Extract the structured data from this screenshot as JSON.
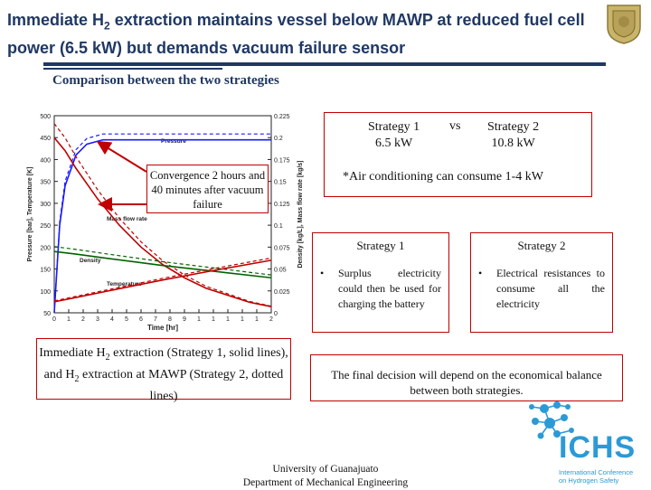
{
  "title": {
    "before_sub": "Immediate H",
    "sub": "2",
    "after_sub": " extraction maintains vessel below MAWP at reduced fuel cell power (6.5 kW) but demands vacuum failure sensor"
  },
  "subtitle": "Comparison between the two strategies",
  "comparison": {
    "strategy1_name": "Strategy 1",
    "strategy1_power": "6.5 kW",
    "vs": "vs",
    "strategy2_name": "Strategy 2",
    "strategy2_power": "10.8 kW",
    "note": "*Air conditioning can consume 1-4 kW"
  },
  "convergence_note": "Convergence 2 hours and 40 minutes after vacuum failure",
  "caption": {
    "part1": "Immediate H",
    "sub1": "2",
    "part2": " extraction (Strategy 1, solid lines), and H",
    "sub2": "2",
    "part3": " extraction at MAWP (Strategy 2, dotted lines)"
  },
  "strategy1": {
    "title": "Strategy 1",
    "bullet": "Surplus electricity could then be used for charging the battery"
  },
  "strategy2": {
    "title": "Strategy 2",
    "bullet": "Electrical resistances to consume all the electricity"
  },
  "final_decision": "The final decision will depend on the economical balance between both strategies.",
  "footer": {
    "line1": "University of Guanajuato",
    "line2": "Department of Mechanical Engineering"
  },
  "logo": {
    "name": "ICHS",
    "line1": "International Conference",
    "line2": "on Hydrogen Safety"
  },
  "chart_data": {
    "type": "line",
    "xlabel": "Time [hr]",
    "ylabel_left": "Pressure [bar], Temperature [K]",
    "ylabel_right": "Density [kg/L], Mass flow rate [kg/s]",
    "xlim": [
      0,
      2
    ],
    "ylim_left": [
      50,
      500
    ],
    "ylim_right": [
      0,
      0.225
    ],
    "x_ticks": [
      "0",
      "1",
      "2",
      "3",
      "4",
      "5",
      "6",
      "7",
      "8",
      "9",
      "1",
      "1",
      "1",
      "1",
      "1",
      "2"
    ],
    "y_ticks_left": [
      "500",
      "450",
      "400",
      "350",
      "300",
      "250",
      "200",
      "150",
      "100",
      "50"
    ],
    "y_ticks_right": [
      "0.225",
      "0.2",
      "0.175",
      "0.15",
      "0.125",
      "0.1",
      "0.075",
      "0.05",
      "0.025",
      "0"
    ],
    "annotations": [
      "Pressure",
      "Mass flow rate",
      "Density",
      "Temperature"
    ],
    "series": [
      {
        "name": "Pressure",
        "color": "#1a1aff",
        "x": [
          0,
          0.05,
          0.1,
          0.2,
          0.3,
          0.45,
          0.6,
          1.0,
          1.5,
          2.0
        ],
        "y": [
          50,
          250,
          340,
          410,
          435,
          445,
          445,
          445,
          445,
          445
        ]
      },
      {
        "name": "Mass flow rate",
        "color": "#c00000",
        "x": [
          0,
          0.1,
          0.2,
          0.4,
          0.6,
          0.8,
          1.0,
          1.2,
          1.4,
          1.6,
          1.8,
          2.0
        ],
        "y": [
          0.2,
          0.185,
          0.165,
          0.13,
          0.1,
          0.075,
          0.055,
          0.04,
          0.028,
          0.02,
          0.012,
          0.007
        ]
      },
      {
        "name": "Density",
        "color": "#006400",
        "x": [
          0,
          0.2,
          0.5,
          1.0,
          1.5,
          2.0
        ],
        "y": [
          0.07,
          0.067,
          0.062,
          0.054,
          0.047,
          0.04
        ]
      },
      {
        "name": "Temperature",
        "color": "#c00000",
        "x": [
          0,
          0.2,
          0.5,
          1.0,
          1.5,
          2.0
        ],
        "y": [
          75,
          85,
          100,
          125,
          148,
          170
        ]
      }
    ]
  }
}
